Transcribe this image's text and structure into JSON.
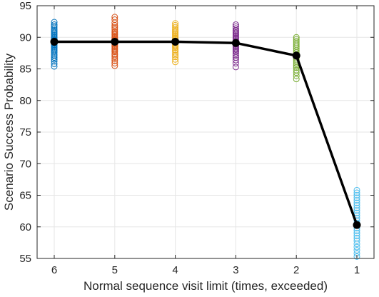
{
  "chart_data": {
    "type": "scatter",
    "title": "",
    "xlabel": "Normal sequence visit limit (times, exceeded)",
    "ylabel": "Scenario Success Probability",
    "xtick_labels": [
      "6",
      "5",
      "4",
      "3",
      "2",
      "1"
    ],
    "yticks": [
      55,
      60,
      65,
      70,
      75,
      80,
      85,
      90,
      95
    ],
    "ylim": [
      55,
      95
    ],
    "grid": true,
    "legend": "none",
    "series": [
      {
        "category": "6",
        "color": "#0072BD",
        "values": [
          85.4,
          85.8,
          86.2,
          86.5,
          86.8,
          87.1,
          87.3,
          87.6,
          87.8,
          88.0,
          88.2,
          88.4,
          88.6,
          88.8,
          89.0,
          89.1,
          89.3,
          89.5,
          89.6,
          89.8,
          90.0,
          90.2,
          90.4,
          90.6,
          90.8,
          91.0,
          91.2,
          91.5,
          91.8,
          92.0,
          92.4
        ]
      },
      {
        "category": "5",
        "color": "#D95319",
        "values": [
          85.5,
          85.9,
          86.3,
          86.6,
          86.9,
          87.2,
          87.4,
          87.7,
          87.9,
          88.1,
          88.3,
          88.5,
          88.7,
          88.9,
          89.1,
          89.2,
          89.4,
          89.6,
          89.8,
          90.0,
          90.2,
          90.4,
          90.6,
          90.8,
          91.0,
          91.3,
          91.6,
          91.9,
          92.3,
          92.8,
          93.2
        ]
      },
      {
        "category": "4",
        "color": "#EDB120",
        "values": [
          86.1,
          86.5,
          86.9,
          87.2,
          87.5,
          87.8,
          88.0,
          88.3,
          88.5,
          88.7,
          88.9,
          89.1,
          89.3,
          89.5,
          89.7,
          89.9,
          90.1,
          90.3,
          90.5,
          90.7,
          90.9,
          91.1,
          91.3,
          91.6,
          91.9,
          92.2
        ]
      },
      {
        "category": "3",
        "color": "#7E2F8E",
        "values": [
          85.3,
          85.9,
          86.4,
          86.8,
          87.1,
          87.4,
          87.7,
          87.9,
          88.1,
          88.3,
          88.5,
          88.7,
          88.9,
          89.1,
          89.3,
          89.5,
          89.7,
          89.9,
          90.1,
          90.3,
          90.5,
          90.7,
          90.9,
          91.1,
          91.4,
          91.7,
          92.0
        ]
      },
      {
        "category": "2",
        "color": "#77AC30",
        "values": [
          83.4,
          83.9,
          84.4,
          84.8,
          85.2,
          85.5,
          85.8,
          86.1,
          86.4,
          86.7,
          87.0,
          87.3,
          87.6,
          87.9,
          88.2,
          88.5,
          88.8,
          89.1,
          89.4,
          89.7,
          90.0
        ]
      },
      {
        "category": "1",
        "color": "#4DBEEE",
        "values": [
          55.3,
          55.8,
          56.3,
          56.8,
          57.3,
          57.8,
          58.2,
          58.6,
          59.0,
          59.4,
          59.8,
          60.2,
          60.6,
          61.0,
          61.4,
          61.8,
          62.2,
          62.6,
          63.0,
          63.4,
          63.8,
          64.2,
          64.6,
          65.0,
          65.4,
          65.8
        ]
      }
    ],
    "mean_line": {
      "color": "#000000",
      "values": [
        89.3,
        89.3,
        89.3,
        89.1,
        87.1,
        60.3
      ]
    }
  }
}
